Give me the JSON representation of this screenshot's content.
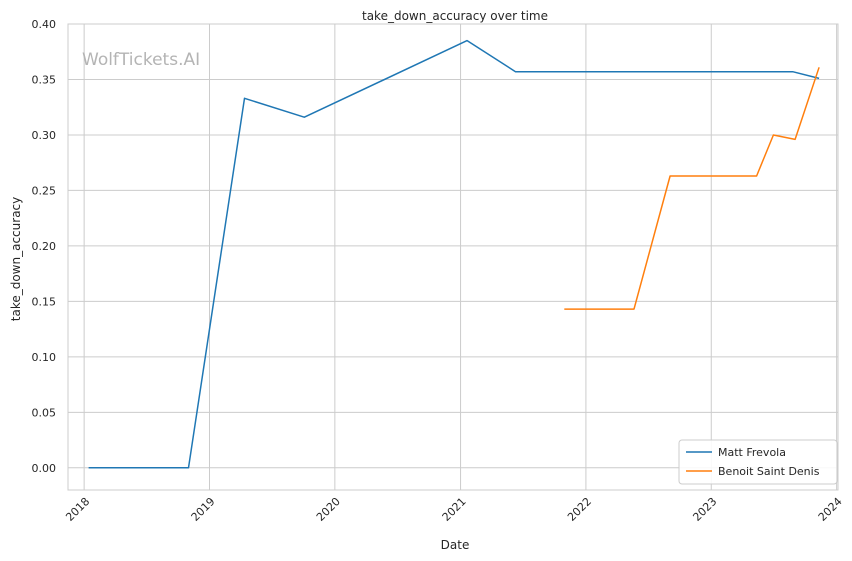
{
  "chart_data": {
    "type": "line",
    "title": "take_down_accuracy over time",
    "xlabel": "Date",
    "ylabel": "take_down_accuracy",
    "watermark": "WolfTickets.AI",
    "x_ticks": [
      "2018",
      "2019",
      "2020",
      "2021",
      "2022",
      "2023",
      "2024"
    ],
    "y_ticks": [
      "0.00",
      "0.05",
      "0.10",
      "0.15",
      "0.20",
      "0.25",
      "0.30",
      "0.35",
      "0.40"
    ],
    "xlim": [
      "2017-11-15",
      "2024-01-05"
    ],
    "ylim": [
      -0.02,
      0.4
    ],
    "grid": true,
    "legend_position": "bottom-right",
    "series": [
      {
        "name": "Matt Frevola",
        "color": "#1f77b4",
        "points": [
          {
            "x": "2018-01-14",
            "y": 0.0
          },
          {
            "x": "2018-11-01",
            "y": 0.0
          },
          {
            "x": "2019-04-13",
            "y": 0.333
          },
          {
            "x": "2019-10-04",
            "y": 0.316
          },
          {
            "x": "2021-01-20",
            "y": 0.385
          },
          {
            "x": "2021-06-10",
            "y": 0.357
          },
          {
            "x": "2023-08-26",
            "y": 0.357
          },
          {
            "x": "2023-11-11",
            "y": 0.351
          }
        ]
      },
      {
        "name": "Benoit Saint Denis",
        "color": "#ff7f0e",
        "points": [
          {
            "x": "2021-10-30",
            "y": 0.143
          },
          {
            "x": "2022-05-21",
            "y": 0.143
          },
          {
            "x": "2022-09-03",
            "y": 0.263
          },
          {
            "x": "2023-05-13",
            "y": 0.263
          },
          {
            "x": "2023-07-01",
            "y": 0.3
          },
          {
            "x": "2023-09-02",
            "y": 0.296
          },
          {
            "x": "2023-11-11",
            "y": 0.361
          }
        ]
      }
    ]
  }
}
